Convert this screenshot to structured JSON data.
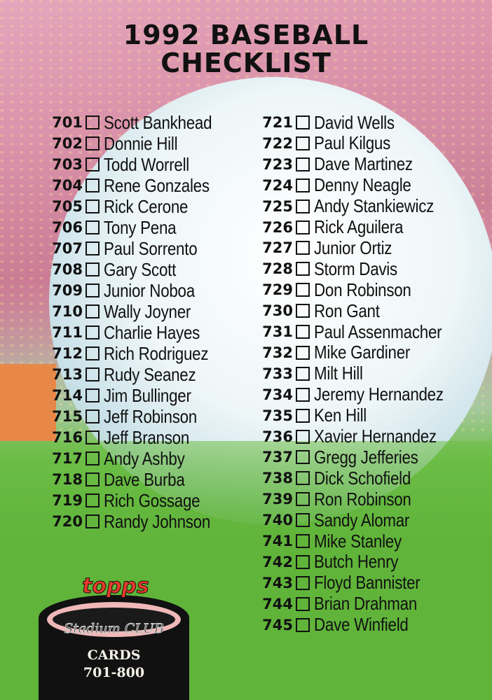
{
  "title": {
    "line1": "1992 BASEBALL",
    "line2": "CHECKLIST"
  },
  "left_column": [
    {
      "num": "701",
      "name": "Scott Bankhead"
    },
    {
      "num": "702",
      "name": "Donnie Hill"
    },
    {
      "num": "703",
      "name": "Todd Worrell"
    },
    {
      "num": "704",
      "name": "Rene Gonzales"
    },
    {
      "num": "705",
      "name": "Rick Cerone"
    },
    {
      "num": "706",
      "name": "Tony Pena"
    },
    {
      "num": "707",
      "name": "Paul Sorrento"
    },
    {
      "num": "708",
      "name": "Gary Scott"
    },
    {
      "num": "709",
      "name": "Junior Noboa"
    },
    {
      "num": "710",
      "name": "Wally Joyner"
    },
    {
      "num": "711",
      "name": "Charlie Hayes"
    },
    {
      "num": "712",
      "name": "Rich Rodriguez"
    },
    {
      "num": "713",
      "name": "Rudy Seanez"
    },
    {
      "num": "714",
      "name": "Jim Bullinger"
    },
    {
      "num": "715",
      "name": "Jeff Robinson"
    },
    {
      "num": "716",
      "name": "Jeff Branson"
    },
    {
      "num": "717",
      "name": "Andy Ashby"
    },
    {
      "num": "718",
      "name": "Dave Burba"
    },
    {
      "num": "719",
      "name": "Rich Gossage"
    },
    {
      "num": "720",
      "name": "Randy Johnson"
    }
  ],
  "right_column": [
    {
      "num": "721",
      "name": "David Wells"
    },
    {
      "num": "722",
      "name": "Paul Kilgus"
    },
    {
      "num": "723",
      "name": "Dave Martinez"
    },
    {
      "num": "724",
      "name": "Denny Neagle"
    },
    {
      "num": "725",
      "name": "Andy Stankiewicz"
    },
    {
      "num": "726",
      "name": "Rick Aguilera"
    },
    {
      "num": "727",
      "name": "Junior Ortiz"
    },
    {
      "num": "728",
      "name": "Storm Davis"
    },
    {
      "num": "729",
      "name": "Don Robinson"
    },
    {
      "num": "730",
      "name": "Ron Gant"
    },
    {
      "num": "731",
      "name": "Paul Assenmacher"
    },
    {
      "num": "732",
      "name": "Mike Gardiner"
    },
    {
      "num": "733",
      "name": "Milt Hill"
    },
    {
      "num": "734",
      "name": "Jeremy Hernandez"
    },
    {
      "num": "735",
      "name": "Ken Hill"
    },
    {
      "num": "736",
      "name": "Xavier Hernandez"
    },
    {
      "num": "737",
      "name": "Gregg Jefferies"
    },
    {
      "num": "738",
      "name": "Dick Schofield"
    },
    {
      "num": "739",
      "name": "Ron Robinson"
    },
    {
      "num": "740",
      "name": "Sandy Alomar"
    },
    {
      "num": "741",
      "name": "Mike Stanley"
    },
    {
      "num": "742",
      "name": "Butch Henry"
    },
    {
      "num": "743",
      "name": "Floyd Bannister"
    },
    {
      "num": "744",
      "name": "Brian Drahman"
    },
    {
      "num": "745",
      "name": "Dave Winfield"
    }
  ],
  "logo": {
    "brand": "topps",
    "series": "Stadium CLUB",
    "cards_label": "CARDS",
    "range": "701-800"
  }
}
